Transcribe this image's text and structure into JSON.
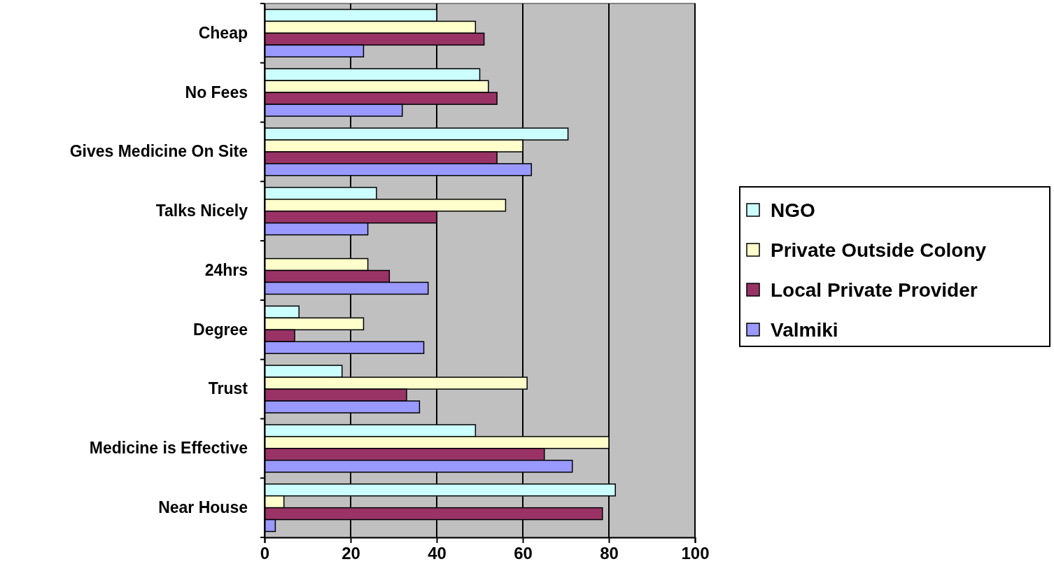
{
  "chart_data": {
    "type": "bar",
    "orientation": "horizontal",
    "categories": [
      "Cheap",
      "No Fees",
      "Gives Medicine On Site",
      "Talks Nicely",
      "24hrs",
      "Degree",
      "Trust",
      "Medicine is Effective",
      "Near House"
    ],
    "series": [
      {
        "name": "NGO",
        "color": "#ccffff",
        "values": [
          40,
          50,
          70.5,
          26,
          null,
          8,
          18,
          49,
          81.5
        ]
      },
      {
        "name": "Private Outside Colony",
        "color": "#ffffcc",
        "values": [
          49,
          52,
          60,
          56,
          24,
          23,
          61,
          80,
          4.5
        ]
      },
      {
        "name": "Local Private Provider",
        "color": "#993366",
        "values": [
          51,
          54,
          54,
          40,
          29,
          7,
          33,
          65,
          78.5
        ]
      },
      {
        "name": "Valmiki",
        "color": "#9999ff",
        "values": [
          23,
          32,
          62,
          24,
          38,
          37,
          36,
          71.5,
          2.5
        ]
      }
    ],
    "xlim": [
      0,
      100
    ],
    "xticks": [
      0,
      20,
      40,
      60,
      80,
      100
    ],
    "grid": "x",
    "legend": "right"
  }
}
